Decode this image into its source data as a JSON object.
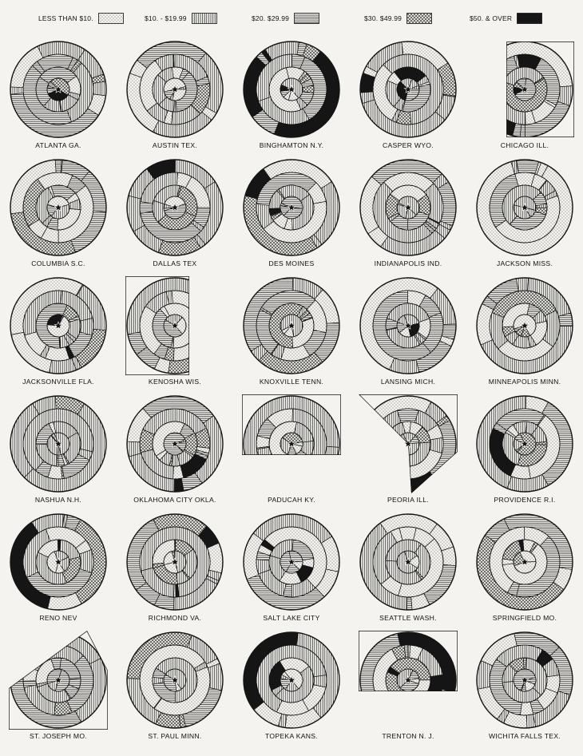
{
  "legend": [
    {
      "label": "LESS THAN $10.",
      "pattern": "dots"
    },
    {
      "label": "$10. - $19.99",
      "pattern": "vertical"
    },
    {
      "label": "$20.   $29.99",
      "pattern": "horizontal"
    },
    {
      "label": "$30.   $49.99",
      "pattern": "crosshatch"
    },
    {
      "label": "$50. & OVER",
      "pattern": "solid"
    }
  ],
  "colors": {
    "ink": "#151515",
    "paper": "#f4f3ef"
  },
  "cities": [
    {
      "name": "ATLANTA GA.",
      "shape": "circle"
    },
    {
      "name": "AUSTIN TEX.",
      "shape": "circle"
    },
    {
      "name": "BINGHAMTON N.Y.",
      "shape": "circle"
    },
    {
      "name": "CASPER WYO.",
      "shape": "circle"
    },
    {
      "name": "CHICAGO ILL.",
      "shape": "cut-left"
    },
    {
      "name": "COLUMBIA S.C.",
      "shape": "circle"
    },
    {
      "name": "DALLAS TEX",
      "shape": "circle"
    },
    {
      "name": "DES MOINES",
      "shape": "circle"
    },
    {
      "name": "INDIANAPOLIS IND.",
      "shape": "circle"
    },
    {
      "name": "JACKSON MISS.",
      "shape": "circle"
    },
    {
      "name": "JACKSONVILLE FLA.",
      "shape": "circle"
    },
    {
      "name": "KENOSHA WIS.",
      "shape": "cut-right"
    },
    {
      "name": "KNOXVILLE TENN.",
      "shape": "circle"
    },
    {
      "name": "LANSING MICH.",
      "shape": "circle"
    },
    {
      "name": "MINNEAPOLIS MINN.",
      "shape": "circle"
    },
    {
      "name": "NASHUA N.H.",
      "shape": "circle"
    },
    {
      "name": "OKLAHOMA CITY OKLA.",
      "shape": "circle"
    },
    {
      "name": "PADUCAH KY.",
      "shape": "half-top"
    },
    {
      "name": "PEORIA ILL.",
      "shape": "wedge"
    },
    {
      "name": "PROVIDENCE R.I.",
      "shape": "circle"
    },
    {
      "name": "RENO NEV",
      "shape": "circle"
    },
    {
      "name": "RICHMOND VA.",
      "shape": "circle"
    },
    {
      "name": "SALT LAKE CITY",
      "shape": "circle"
    },
    {
      "name": "SEATTLE WASH.",
      "shape": "circle"
    },
    {
      "name": "SPRINGFIELD MO.",
      "shape": "circle"
    },
    {
      "name": "ST. JOSEPH MO.",
      "shape": "wedge-left"
    },
    {
      "name": "ST. PAUL MINN.",
      "shape": "circle"
    },
    {
      "name": "TOPEKA KANS.",
      "shape": "circle"
    },
    {
      "name": "TRENTON N. J.",
      "shape": "half-top"
    },
    {
      "name": "WICHITA FALLS TEX.",
      "shape": "circle"
    }
  ]
}
